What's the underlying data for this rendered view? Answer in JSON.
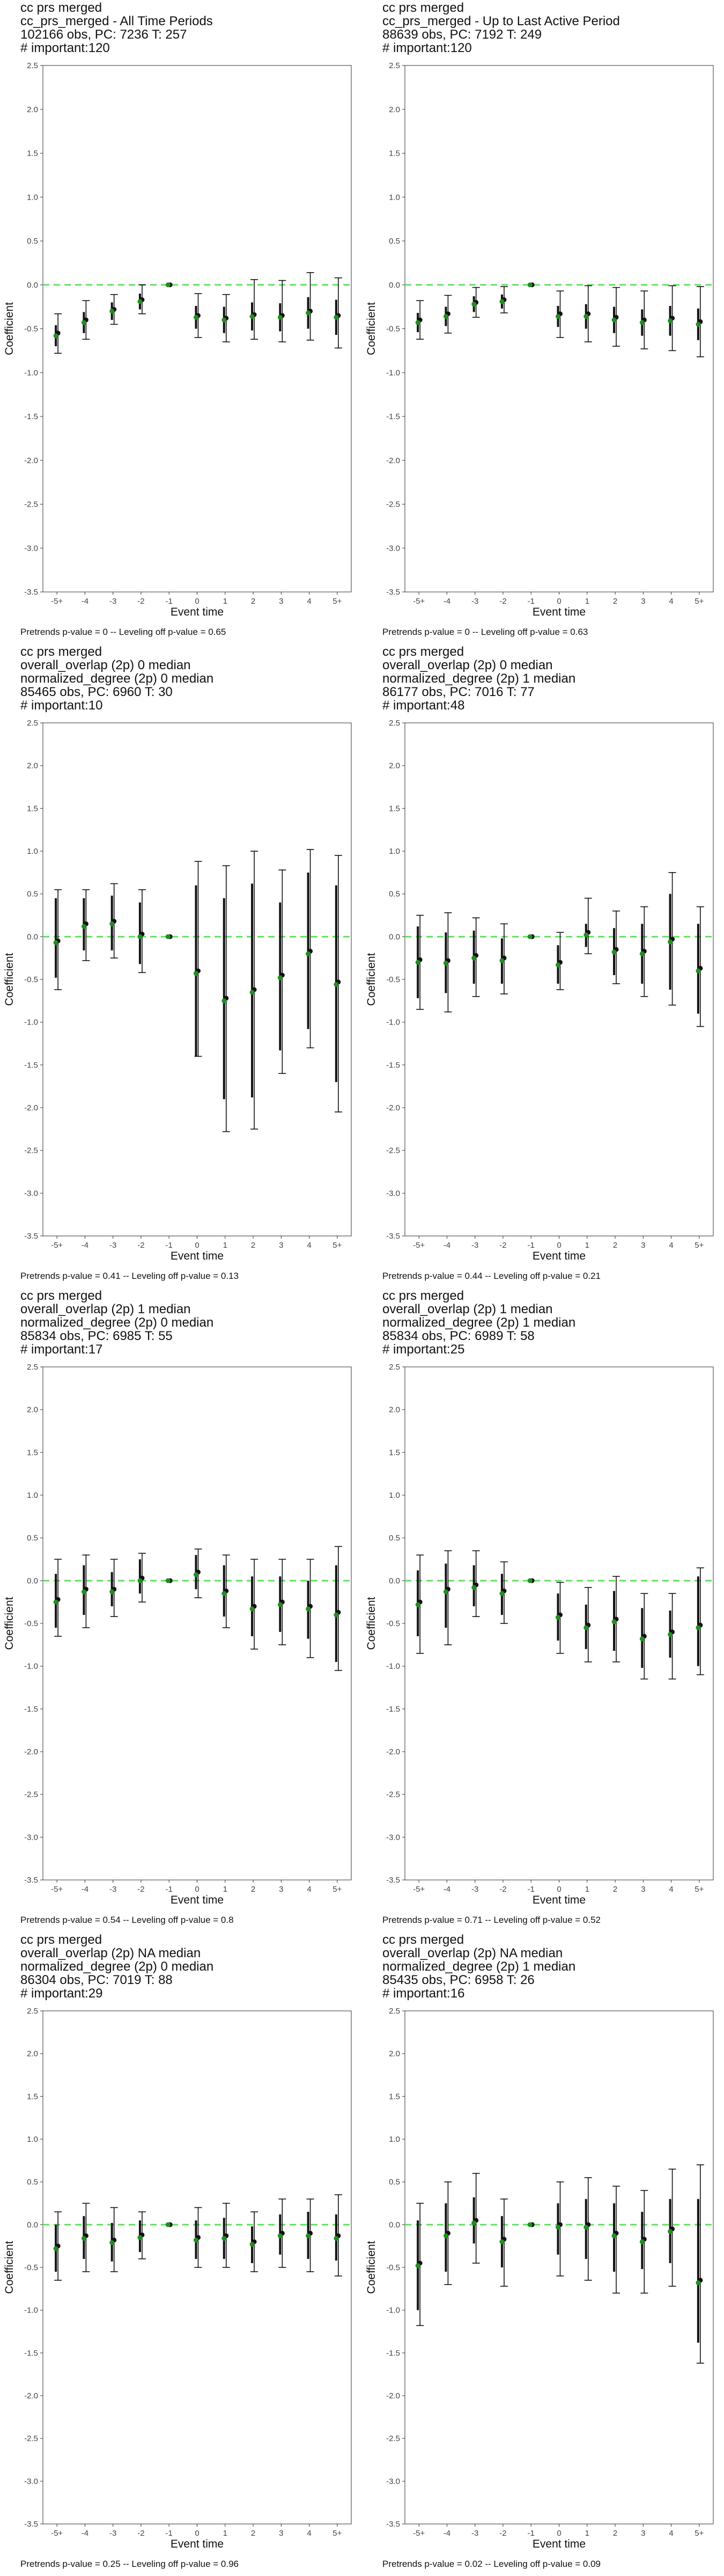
{
  "chart_data": [
    {
      "type": "scatter",
      "title_lines": [
        "cc prs merged",
        "cc_prs_merged - All Time Periods",
        "102166 obs, PC: 7236 T: 257",
        "# important:120"
      ],
      "xlabel": "Event time",
      "ylabel": "Coefficient",
      "categories": [
        "-5+",
        "-4",
        "-3",
        "-2",
        "-1",
        "0",
        "1",
        "2",
        "3",
        "4",
        "5+"
      ],
      "ylim": [
        -3.5,
        2.5
      ],
      "yticks": [
        "2.5",
        "2.0",
        "1.5",
        "1.0",
        "0.5",
        "0.0",
        "-0.5",
        "-1.0",
        "-1.5",
        "-2.0",
        "-2.5",
        "-3.0",
        "-3.5"
      ],
      "series": [
        {
          "values": [
            -0.55,
            -0.4,
            -0.28,
            -0.17,
            0.0,
            -0.35,
            -0.38,
            -0.34,
            -0.35,
            -0.3,
            -0.35
          ],
          "lower": [
            -0.78,
            -0.62,
            -0.45,
            -0.33,
            0.0,
            -0.6,
            -0.65,
            -0.62,
            -0.65,
            -0.63,
            -0.72
          ],
          "upper": [
            -0.33,
            -0.18,
            -0.11,
            0.0,
            0.0,
            -0.1,
            -0.11,
            0.06,
            0.05,
            0.14,
            0.08
          ]
        },
        {
          "values": [
            -0.58,
            -0.43,
            -0.3,
            -0.19,
            0.0,
            -0.37,
            -0.4,
            -0.36,
            -0.37,
            -0.32,
            -0.37
          ],
          "lower": [
            -0.7,
            -0.55,
            -0.4,
            -0.28,
            0.0,
            -0.5,
            -0.55,
            -0.52,
            -0.53,
            -0.5,
            -0.57
          ],
          "upper": [
            -0.46,
            -0.31,
            -0.2,
            -0.1,
            0.0,
            -0.24,
            -0.25,
            -0.2,
            -0.21,
            -0.14,
            -0.17
          ]
        }
      ],
      "footnote": "Pretrends p-value = 0 -- Leveling off p-value = 0.65"
    },
    {
      "type": "scatter",
      "title_lines": [
        "cc prs merged",
        "cc_prs_merged - Up to Last Active Period",
        "88639 obs, PC: 7192 T: 249",
        "# important:120"
      ],
      "xlabel": "Event time",
      "ylabel": "Coefficient",
      "categories": [
        "-5+",
        "-4",
        "-3",
        "-2",
        "-1",
        "0",
        "1",
        "2",
        "3",
        "4",
        "5+"
      ],
      "ylim": [
        -3.5,
        2.5
      ],
      "yticks": [
        "2.5",
        "2.0",
        "1.5",
        "1.0",
        "0.5",
        "0.0",
        "-0.5",
        "-1.0",
        "-1.5",
        "-2.0",
        "-2.5",
        "-3.0",
        "-3.5"
      ],
      "series": [
        {
          "values": [
            -0.4,
            -0.33,
            -0.2,
            -0.17,
            0.0,
            -0.33,
            -0.33,
            -0.37,
            -0.4,
            -0.38,
            -0.42
          ],
          "lower": [
            -0.62,
            -0.55,
            -0.37,
            -0.32,
            0.0,
            -0.6,
            -0.65,
            -0.7,
            -0.73,
            -0.75,
            -0.82
          ],
          "upper": [
            -0.18,
            -0.12,
            -0.03,
            -0.02,
            0.0,
            -0.07,
            -0.01,
            -0.03,
            -0.07,
            -0.01,
            -0.02
          ]
        },
        {
          "values": [
            -0.43,
            -0.36,
            -0.22,
            -0.19,
            0.0,
            -0.36,
            -0.36,
            -0.4,
            -0.43,
            -0.41,
            -0.45
          ],
          "lower": [
            -0.54,
            -0.47,
            -0.31,
            -0.27,
            0.0,
            -0.48,
            -0.5,
            -0.55,
            -0.58,
            -0.58,
            -0.63
          ],
          "upper": [
            -0.32,
            -0.25,
            -0.13,
            -0.11,
            0.0,
            -0.24,
            -0.22,
            -0.25,
            -0.28,
            -0.24,
            -0.27
          ]
        }
      ],
      "footnote": "Pretrends p-value = 0 -- Leveling off p-value = 0.63"
    },
    {
      "type": "scatter",
      "title_lines": [
        "cc prs merged",
        "overall_overlap (2p) 0 median",
        "normalized_degree (2p) 0 median",
        "85465 obs, PC: 6960 T: 30",
        "# important:10"
      ],
      "xlabel": "Event time",
      "ylabel": "Coefficient",
      "categories": [
        "-5+",
        "-4",
        "-3",
        "-2",
        "-1",
        "0",
        "1",
        "2",
        "3",
        "4",
        "5+"
      ],
      "ylim": [
        -3.5,
        2.5
      ],
      "yticks": [
        "2.5",
        "2.0",
        "1.5",
        "1.0",
        "0.5",
        "0.0",
        "-0.5",
        "-1.0",
        "-1.5",
        "-2.0",
        "-2.5",
        "-3.0",
        "-3.5"
      ],
      "series": [
        {
          "values": [
            -0.05,
            0.15,
            0.18,
            0.03,
            0.0,
            -0.4,
            -0.72,
            -0.62,
            -0.45,
            -0.17,
            -0.53
          ],
          "lower": [
            -0.62,
            -0.28,
            -0.25,
            -0.42,
            0.0,
            -1.4,
            -2.28,
            -2.25,
            -1.6,
            -1.3,
            -2.05
          ],
          "upper": [
            0.55,
            0.55,
            0.62,
            0.55,
            0.0,
            0.88,
            0.83,
            1.0,
            0.78,
            1.02,
            0.95
          ]
        },
        {
          "values": [
            -0.07,
            0.12,
            0.15,
            0.0,
            0.0,
            -0.43,
            -0.75,
            -0.65,
            -0.48,
            -0.2,
            -0.56
          ],
          "lower": [
            -0.48,
            -0.16,
            -0.16,
            -0.32,
            0.0,
            -1.4,
            -1.9,
            -1.88,
            -1.33,
            -1.08,
            -1.7
          ],
          "upper": [
            0.45,
            0.45,
            0.48,
            0.4,
            0.0,
            0.6,
            0.45,
            0.62,
            0.4,
            0.75,
            0.6
          ]
        }
      ],
      "footnote": "Pretrends p-value = 0.41 -- Leveling off p-value = 0.13"
    },
    {
      "type": "scatter",
      "title_lines": [
        "cc prs merged",
        "overall_overlap (2p) 0 median",
        "normalized_degree (2p) 1 median",
        "86177 obs, PC: 7016 T: 77",
        "# important:48"
      ],
      "xlabel": "Event time",
      "ylabel": "Coefficient",
      "categories": [
        "-5+",
        "-4",
        "-3",
        "-2",
        "-1",
        "0",
        "1",
        "2",
        "3",
        "4",
        "5+"
      ],
      "ylim": [
        -3.5,
        2.5
      ],
      "yticks": [
        "2.5",
        "2.0",
        "1.5",
        "1.0",
        "0.5",
        "0.0",
        "-0.5",
        "-1.0",
        "-1.5",
        "-2.0",
        "-2.5",
        "-3.0",
        "-3.5"
      ],
      "series": [
        {
          "values": [
            -0.27,
            -0.28,
            -0.22,
            -0.25,
            0.0,
            -0.3,
            0.05,
            -0.15,
            -0.17,
            -0.03,
            -0.37
          ],
          "lower": [
            -0.85,
            -0.88,
            -0.7,
            -0.67,
            0.0,
            -0.62,
            -0.2,
            -0.55,
            -0.7,
            -0.8,
            -1.05
          ],
          "upper": [
            0.25,
            0.28,
            0.22,
            0.15,
            0.0,
            0.05,
            0.45,
            0.3,
            0.35,
            0.75,
            0.35
          ]
        },
        {
          "values": [
            -0.3,
            -0.31,
            -0.25,
            -0.28,
            0.0,
            -0.33,
            0.02,
            -0.18,
            -0.2,
            -0.06,
            -0.4
          ],
          "lower": [
            -0.72,
            -0.66,
            -0.55,
            -0.55,
            0.0,
            -0.55,
            -0.12,
            -0.45,
            -0.55,
            -0.62,
            -0.9
          ],
          "upper": [
            0.12,
            0.05,
            0.07,
            -0.02,
            0.0,
            -0.1,
            0.15,
            0.1,
            0.15,
            0.5,
            0.15
          ]
        }
      ],
      "footnote": "Pretrends p-value = 0.44 -- Leveling off p-value = 0.21"
    },
    {
      "type": "scatter",
      "title_lines": [
        "cc prs merged",
        "overall_overlap (2p) 1 median",
        "normalized_degree (2p) 0 median",
        "85834 obs, PC: 6985 T: 55",
        "# important:17"
      ],
      "xlabel": "Event time",
      "ylabel": "Coefficient",
      "categories": [
        "-5+",
        "-4",
        "-3",
        "-2",
        "-1",
        "0",
        "1",
        "2",
        "3",
        "4",
        "5+"
      ],
      "ylim": [
        -3.5,
        2.5
      ],
      "yticks": [
        "2.5",
        "2.0",
        "1.5",
        "1.0",
        "0.5",
        "0.0",
        "-0.5",
        "-1.0",
        "-1.5",
        "-2.0",
        "-2.5",
        "-3.0",
        "-3.5"
      ],
      "series": [
        {
          "values": [
            -0.22,
            -0.1,
            -0.1,
            0.03,
            0.0,
            0.1,
            -0.12,
            -0.3,
            -0.25,
            -0.3,
            -0.37
          ],
          "lower": [
            -0.65,
            -0.55,
            -0.42,
            -0.25,
            0.0,
            -0.2,
            -0.55,
            -0.8,
            -0.75,
            -0.9,
            -1.05
          ],
          "upper": [
            0.25,
            0.3,
            0.25,
            0.32,
            0.0,
            0.37,
            0.3,
            0.25,
            0.25,
            0.25,
            0.4
          ]
        },
        {
          "values": [
            -0.25,
            -0.13,
            -0.13,
            0.0,
            0.0,
            0.07,
            -0.15,
            -0.33,
            -0.28,
            -0.33,
            -0.4
          ],
          "lower": [
            -0.55,
            -0.4,
            -0.3,
            -0.15,
            0.0,
            -0.1,
            -0.42,
            -0.65,
            -0.6,
            -0.68,
            -0.95
          ],
          "upper": [
            0.08,
            0.18,
            0.1,
            0.25,
            0.0,
            0.3,
            0.18,
            0.05,
            0.05,
            0.0,
            0.18
          ]
        }
      ],
      "footnote": "Pretrends p-value = 0.54 -- Leveling off p-value = 0.8"
    },
    {
      "type": "scatter",
      "title_lines": [
        "cc prs merged",
        "overall_overlap (2p) 1 median",
        "normalized_degree (2p) 1 median",
        "85834 obs, PC: 6989 T: 58",
        "# important:25"
      ],
      "xlabel": "Event time",
      "ylabel": "Coefficient",
      "categories": [
        "-5+",
        "-4",
        "-3",
        "-2",
        "-1",
        "0",
        "1",
        "2",
        "3",
        "4",
        "5+"
      ],
      "ylim": [
        -3.5,
        2.5
      ],
      "yticks": [
        "2.5",
        "2.0",
        "1.5",
        "1.0",
        "0.5",
        "0.0",
        "-0.5",
        "-1.0",
        "-1.5",
        "-2.0",
        "-2.5",
        "-3.0",
        "-3.5"
      ],
      "series": [
        {
          "values": [
            -0.25,
            -0.1,
            -0.05,
            -0.12,
            0.0,
            -0.4,
            -0.52,
            -0.45,
            -0.65,
            -0.6,
            -0.52
          ],
          "lower": [
            -0.85,
            -0.75,
            -0.42,
            -0.5,
            0.0,
            -0.85,
            -0.95,
            -0.95,
            -1.15,
            -1.15,
            -1.1
          ],
          "upper": [
            0.3,
            0.35,
            0.35,
            0.22,
            0.0,
            -0.02,
            -0.08,
            0.05,
            -0.15,
            -0.15,
            0.15
          ]
        },
        {
          "values": [
            -0.28,
            -0.13,
            -0.08,
            -0.15,
            0.0,
            -0.43,
            -0.55,
            -0.48,
            -0.68,
            -0.63,
            -0.55
          ],
          "lower": [
            -0.65,
            -0.55,
            -0.3,
            -0.4,
            0.0,
            -0.7,
            -0.8,
            -0.82,
            -1.02,
            -0.9,
            -1.0
          ],
          "upper": [
            0.12,
            0.2,
            0.18,
            0.08,
            0.0,
            -0.15,
            -0.28,
            -0.12,
            -0.32,
            -0.35,
            0.05
          ]
        }
      ],
      "footnote": "Pretrends p-value = 0.71 -- Leveling off p-value = 0.52"
    },
    {
      "type": "scatter",
      "title_lines": [
        "cc prs merged",
        "overall_overlap (2p) NA median",
        "normalized_degree (2p) 0 median",
        "86304 obs, PC: 7019 T: 88",
        "# important:29"
      ],
      "xlabel": "Event time",
      "ylabel": "Coefficient",
      "categories": [
        "-5+",
        "-4",
        "-3",
        "-2",
        "-1",
        "0",
        "1",
        "2",
        "3",
        "4",
        "5+"
      ],
      "ylim": [
        -3.5,
        2.5
      ],
      "yticks": [
        "2.5",
        "2.0",
        "1.5",
        "1.0",
        "0.5",
        "0.0",
        "-0.5",
        "-1.0",
        "-1.5",
        "-2.0",
        "-2.5",
        "-3.0",
        "-3.5"
      ],
      "series": [
        {
          "values": [
            -0.25,
            -0.13,
            -0.18,
            -0.12,
            0.0,
            -0.15,
            -0.13,
            -0.2,
            -0.1,
            -0.1,
            -0.13
          ],
          "lower": [
            -0.65,
            -0.55,
            -0.55,
            -0.4,
            0.0,
            -0.5,
            -0.5,
            -0.55,
            -0.5,
            -0.55,
            -0.6
          ],
          "upper": [
            0.15,
            0.25,
            0.2,
            0.15,
            0.0,
            0.2,
            0.25,
            0.15,
            0.3,
            0.3,
            0.35
          ]
        },
        {
          "values": [
            -0.28,
            -0.16,
            -0.21,
            -0.15,
            0.0,
            -0.18,
            -0.16,
            -0.23,
            -0.13,
            -0.13,
            -0.16
          ],
          "lower": [
            -0.55,
            -0.4,
            -0.43,
            -0.32,
            0.0,
            -0.4,
            -0.4,
            -0.45,
            -0.35,
            -0.4,
            -0.42
          ],
          "upper": [
            0.0,
            0.1,
            0.02,
            0.05,
            0.0,
            0.05,
            0.08,
            -0.02,
            0.12,
            0.15,
            0.12
          ]
        }
      ],
      "footnote": "Pretrends p-value = 0.25 -- Leveling off p-value = 0.96"
    },
    {
      "type": "scatter",
      "title_lines": [
        "cc prs merged",
        "overall_overlap (2p) NA median",
        "normalized_degree (2p) 1 median",
        "85435 obs, PC: 6958 T: 26",
        "# important:16"
      ],
      "xlabel": "Event time",
      "ylabel": "Coefficient",
      "categories": [
        "-5+",
        "-4",
        "-3",
        "-2",
        "-1",
        "0",
        "1",
        "2",
        "3",
        "4",
        "5+"
      ],
      "ylim": [
        -3.5,
        2.5
      ],
      "yticks": [
        "2.5",
        "2.0",
        "1.5",
        "1.0",
        "0.5",
        "0.0",
        "-0.5",
        "-1.0",
        "-1.5",
        "-2.0",
        "-2.5",
        "-3.0",
        "-3.5"
      ],
      "series": [
        {
          "values": [
            -0.45,
            -0.1,
            0.05,
            -0.17,
            0.0,
            0.0,
            0.0,
            -0.1,
            -0.17,
            -0.05,
            -0.65
          ],
          "lower": [
            -1.18,
            -0.7,
            -0.45,
            -0.72,
            0.0,
            -0.6,
            -0.65,
            -0.8,
            -0.8,
            -0.72,
            -1.62
          ],
          "upper": [
            0.25,
            0.5,
            0.6,
            0.3,
            0.0,
            0.5,
            0.55,
            0.45,
            0.4,
            0.65,
            0.7
          ]
        },
        {
          "values": [
            -0.48,
            -0.13,
            0.02,
            -0.2,
            0.0,
            -0.03,
            -0.03,
            -0.13,
            -0.2,
            -0.08,
            -0.68
          ],
          "lower": [
            -1.0,
            -0.55,
            -0.22,
            -0.5,
            0.0,
            -0.35,
            -0.4,
            -0.55,
            -0.52,
            -0.45,
            -1.38
          ],
          "upper": [
            0.05,
            0.25,
            0.32,
            0.1,
            0.0,
            0.25,
            0.3,
            0.25,
            0.15,
            0.3,
            0.3
          ]
        }
      ],
      "footnote": "Pretrends p-value = 0.02 -- Leveling off p-value = 0.09"
    }
  ]
}
